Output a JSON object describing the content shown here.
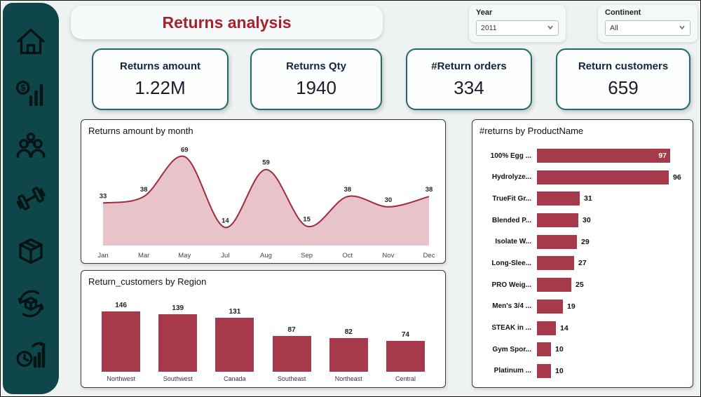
{
  "title": "Returns analysis",
  "filters": {
    "year": {
      "label": "Year",
      "value": "2011"
    },
    "continent": {
      "label": "Continent",
      "value": "All"
    }
  },
  "kpis": [
    {
      "label": "Returns amount",
      "value": "1.22M"
    },
    {
      "label": "Returns Qty",
      "value": "1940"
    },
    {
      "label": "#Return orders",
      "value": "334"
    },
    {
      "label": "Return customers",
      "value": "659"
    }
  ],
  "sidebar": {
    "icons": [
      "home-icon",
      "sales-chart-icon",
      "customers-icon",
      "dumbbell-icon",
      "product-box-icon",
      "returns-cycle-icon",
      "time-analysis-icon"
    ]
  },
  "colors": {
    "accent_red": "#a63a4b",
    "line_red": "#a12c3f",
    "area_fill": "#e8c4ca",
    "sidebar_teal": "#0e4649",
    "kpi_border": "#1f6b6b",
    "title_red": "#a8222e"
  },
  "chart_data": [
    {
      "type": "area",
      "title": "Returns amount by month",
      "categories": [
        "Jan",
        "Mar",
        "May",
        "Jul",
        "Aug",
        "Sep",
        "Oct",
        "Nov",
        "Dec"
      ],
      "values": [
        33,
        38,
        69,
        14,
        59,
        15,
        38,
        30,
        38
      ],
      "ylim": [
        0,
        73
      ],
      "grid": false,
      "data_labels": true,
      "legend": "none"
    },
    {
      "type": "bar",
      "title": "Return_customers by Region",
      "categories": [
        "Northwest",
        "Southwest",
        "Canada",
        "Southeast",
        "Northeast",
        "Central"
      ],
      "values": [
        146,
        139,
        131,
        87,
        82,
        74
      ],
      "grid": false,
      "data_labels": true,
      "legend": "none"
    },
    {
      "type": "bar-horizontal",
      "title": "#returns by ProductName",
      "categories": [
        "100% Egg ...",
        "Hydrolyze...",
        "TrueFit Gr...",
        "Blended P...",
        "Isolate W...",
        "Long-Slee...",
        "PRO Weig...",
        "Men's 3/4 ...",
        "STEAK in ...",
        "Gym Spor...",
        "Platinum ..."
      ],
      "values": [
        97,
        96,
        31,
        30,
        29,
        27,
        25,
        19,
        14,
        10,
        10
      ],
      "grid": false,
      "data_labels": true,
      "legend": "none"
    }
  ]
}
